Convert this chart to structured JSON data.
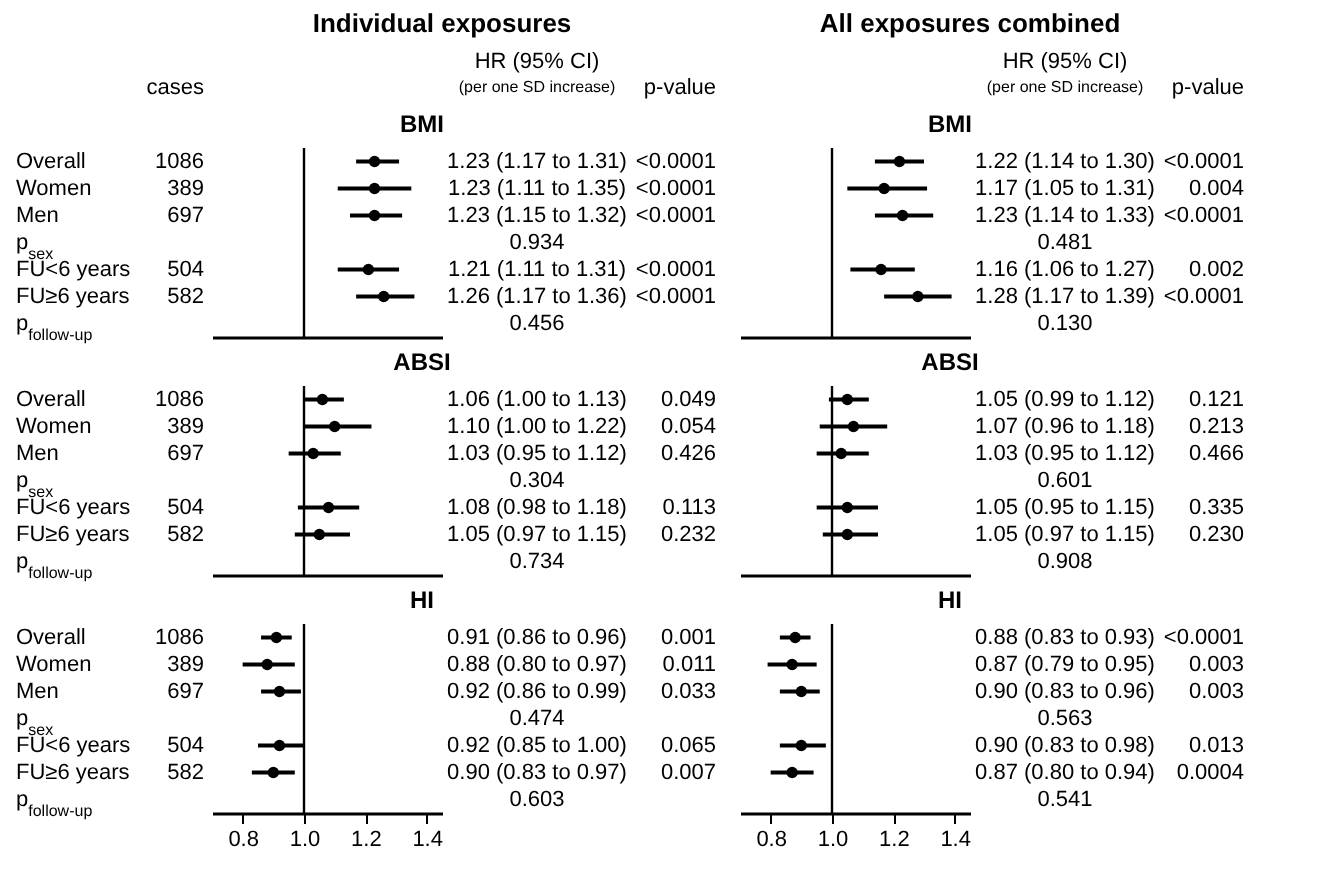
{
  "chart_data": [
    {
      "type": "scatter",
      "title": "Individual exposures",
      "subtitle": "BMI",
      "annotations": [
        "cases",
        "HR (95% CI)",
        "(per one SD increase)",
        "p-value",
        "<0.0001",
        "<0.0001",
        "<0.0001",
        "0.934",
        "<0.0001",
        "<0.0001",
        "0.456"
      ],
      "categories": [
        "Overall",
        "Women",
        "Men",
        "p$_{sex}$",
        "FU<6 years",
        "FU≥6 years",
        "p$_{follow-up}$"
      ],
      "y2_categories": [
        "1086",
        "389",
        "697",
        null,
        "504",
        "582",
        null
      ],
      "orientation": "horizontal",
      "xlim": [
        0.7,
        1.45
      ],
      "tick_labels": "y",
      "marker": "circle",
      "ref_lines": [
        {
          "axis": "x",
          "value": 1
        }
      ],
      "series": [
        {
          "color": "#000000",
          "values": [
            1.23,
            1.23,
            1.23,
            null,
            1.21,
            1.26,
            null
          ],
          "errors": [
            [
              1.17,
              1.31
            ],
            [
              1.11,
              1.35
            ],
            [
              1.15,
              1.32
            ],
            null,
            [
              1.11,
              1.31
            ],
            [
              1.17,
              1.36
            ],
            null
          ],
          "value_labels": [
            "1.23 (1.17 to 1.31)",
            "1.23 (1.11 to 1.35)",
            "1.23 (1.15 to 1.32)",
            null,
            "1.21 (1.11 to 1.31)",
            "1.26 (1.17 to 1.36)",
            null
          ]
        }
      ]
    },
    {
      "type": "scatter",
      "subtitle": "ABSI",
      "annotations": [
        "0.049",
        "0.054",
        "0.426",
        "0.304",
        "0.113",
        "0.232",
        "0.734"
      ],
      "categories": [
        "Overall",
        "Women",
        "Men",
        "p$_{sex}$",
        "FU<6 years",
        "FU≥6 years",
        "p$_{follow-up}$"
      ],
      "y2_categories": [
        "1086",
        "389",
        "697",
        null,
        "504",
        "582",
        null
      ],
      "orientation": "horizontal",
      "xlim": [
        0.7,
        1.45
      ],
      "tick_labels": "y",
      "marker": "circle",
      "ref_lines": [
        {
          "axis": "x",
          "value": 1
        }
      ],
      "series": [
        {
          "color": "#000000",
          "values": [
            1.06,
            1.1,
            1.03,
            null,
            1.08,
            1.05,
            null
          ],
          "errors": [
            [
              1.0,
              1.13
            ],
            [
              1.0,
              1.22
            ],
            [
              0.95,
              1.12
            ],
            null,
            [
              0.98,
              1.18
            ],
            [
              0.97,
              1.15
            ],
            null
          ],
          "value_labels": [
            "1.06 (1.00 to 1.13)",
            "1.10 (1.00 to 1.22)",
            "1.03 (0.95 to 1.12)",
            null,
            "1.08 (0.98 to 1.18)",
            "1.05 (0.97 to 1.15)",
            null
          ]
        }
      ]
    },
    {
      "type": "scatter",
      "subtitle": "HI",
      "annotations": [
        "0.001",
        "0.011",
        "0.033",
        "0.474",
        "0.065",
        "0.007",
        "0.603"
      ],
      "categories": [
        "Overall",
        "Women",
        "Men",
        "p$_{sex}$",
        "FU<6 years",
        "FU≥6 years",
        "p$_{follow-up}$"
      ],
      "y2_categories": [
        "1086",
        "389",
        "697",
        null,
        "504",
        "582",
        null
      ],
      "orientation": "horizontal",
      "xlim": [
        0.7,
        1.45
      ],
      "xticks": [
        0.8,
        {
          "value": 1,
          "label": "1.0"
        },
        1.2,
        1.4
      ],
      "marker": "circle",
      "ref_lines": [
        {
          "axis": "x",
          "value": 1
        }
      ],
      "series": [
        {
          "color": "#000000",
          "values": [
            0.91,
            0.88,
            0.92,
            null,
            0.92,
            0.9,
            null
          ],
          "errors": [
            [
              0.86,
              0.96
            ],
            [
              0.8,
              0.97
            ],
            [
              0.86,
              0.99
            ],
            null,
            [
              0.85,
              1.0
            ],
            [
              0.83,
              0.97
            ],
            null
          ],
          "value_labels": [
            "0.91 (0.86 to 0.96)",
            "0.88 (0.80 to 0.97)",
            "0.92 (0.86 to 0.99)",
            null,
            "0.92 (0.85 to 1.00)",
            "0.90 (0.83 to 0.97)",
            null
          ]
        }
      ]
    },
    {
      "type": "scatter",
      "title": "All exposures combined",
      "subtitle": "BMI",
      "annotations": [
        "HR (95% CI)",
        "(per one SD increase)",
        "p-value",
        "<0.0001",
        "0.004",
        "<0.0001",
        "0.481",
        "0.002",
        "<0.0001",
        "0.130"
      ],
      "categories": [
        null,
        null,
        null,
        null,
        null,
        null,
        null
      ],
      "orientation": "horizontal",
      "xlim": [
        0.7,
        1.45
      ],
      "tick_labels": false,
      "marker": "circle",
      "ref_lines": [
        {
          "axis": "x",
          "value": 1
        }
      ],
      "series": [
        {
          "color": "#000000",
          "values": [
            1.22,
            1.17,
            1.23,
            null,
            1.16,
            1.28,
            null
          ],
          "errors": [
            [
              1.14,
              1.3
            ],
            [
              1.05,
              1.31
            ],
            [
              1.14,
              1.33
            ],
            null,
            [
              1.06,
              1.27
            ],
            [
              1.17,
              1.39
            ],
            null
          ],
          "value_labels": [
            "1.22 (1.14 to 1.30)",
            "1.17 (1.05 to 1.31)",
            "1.23 (1.14 to 1.33)",
            null,
            "1.16 (1.06 to 1.27)",
            "1.28 (1.17 to 1.39)",
            null
          ]
        }
      ]
    },
    {
      "type": "scatter",
      "subtitle": "ABSI",
      "annotations": [
        "0.121",
        "0.213",
        "0.466",
        "0.601",
        "0.335",
        "0.230",
        "0.908"
      ],
      "categories": [
        null,
        null,
        null,
        null,
        null,
        null,
        null
      ],
      "orientation": "horizontal",
      "xlim": [
        0.7,
        1.45
      ],
      "tick_labels": false,
      "marker": "circle",
      "ref_lines": [
        {
          "axis": "x",
          "value": 1
        }
      ],
      "series": [
        {
          "color": "#000000",
          "values": [
            1.05,
            1.07,
            1.03,
            null,
            1.05,
            1.05,
            null
          ],
          "errors": [
            [
              0.99,
              1.12
            ],
            [
              0.96,
              1.18
            ],
            [
              0.95,
              1.12
            ],
            null,
            [
              0.95,
              1.15
            ],
            [
              0.97,
              1.15
            ],
            null
          ],
          "value_labels": [
            "1.05 (0.99 to 1.12)",
            "1.07 (0.96 to 1.18)",
            "1.03 (0.95 to 1.12)",
            null,
            "1.05 (0.95 to 1.15)",
            "1.05 (0.97 to 1.15)",
            null
          ]
        }
      ]
    },
    {
      "type": "scatter",
      "subtitle": "HI",
      "annotations": [
        "<0.0001",
        "0.003",
        "0.003",
        "0.563",
        "0.013",
        "0.0004",
        "0.541"
      ],
      "categories": [
        null,
        null,
        null,
        null,
        null,
        null,
        null
      ],
      "orientation": "horizontal",
      "xlim": [
        0.7,
        1.45
      ],
      "xticks": [
        0.8,
        {
          "value": 1,
          "label": "1.0"
        },
        1.2,
        1.4
      ],
      "tick_labels": "x",
      "marker": "circle",
      "ref_lines": [
        {
          "axis": "x",
          "value": 1
        }
      ],
      "series": [
        {
          "color": "#000000",
          "values": [
            0.88,
            0.87,
            0.9,
            null,
            0.9,
            0.87,
            null
          ],
          "errors": [
            [
              0.83,
              0.93
            ],
            [
              0.79,
              0.95
            ],
            [
              0.83,
              0.96
            ],
            null,
            [
              0.83,
              0.98
            ],
            [
              0.8,
              0.94
            ],
            null
          ],
          "value_labels": [
            "0.88 (0.83 to 0.93)",
            "0.87 (0.79 to 0.95)",
            "0.90 (0.83 to 0.96)",
            null,
            "0.90 (0.83 to 0.98)",
            "0.87 (0.80 to 0.94)",
            null
          ]
        }
      ]
    }
  ]
}
